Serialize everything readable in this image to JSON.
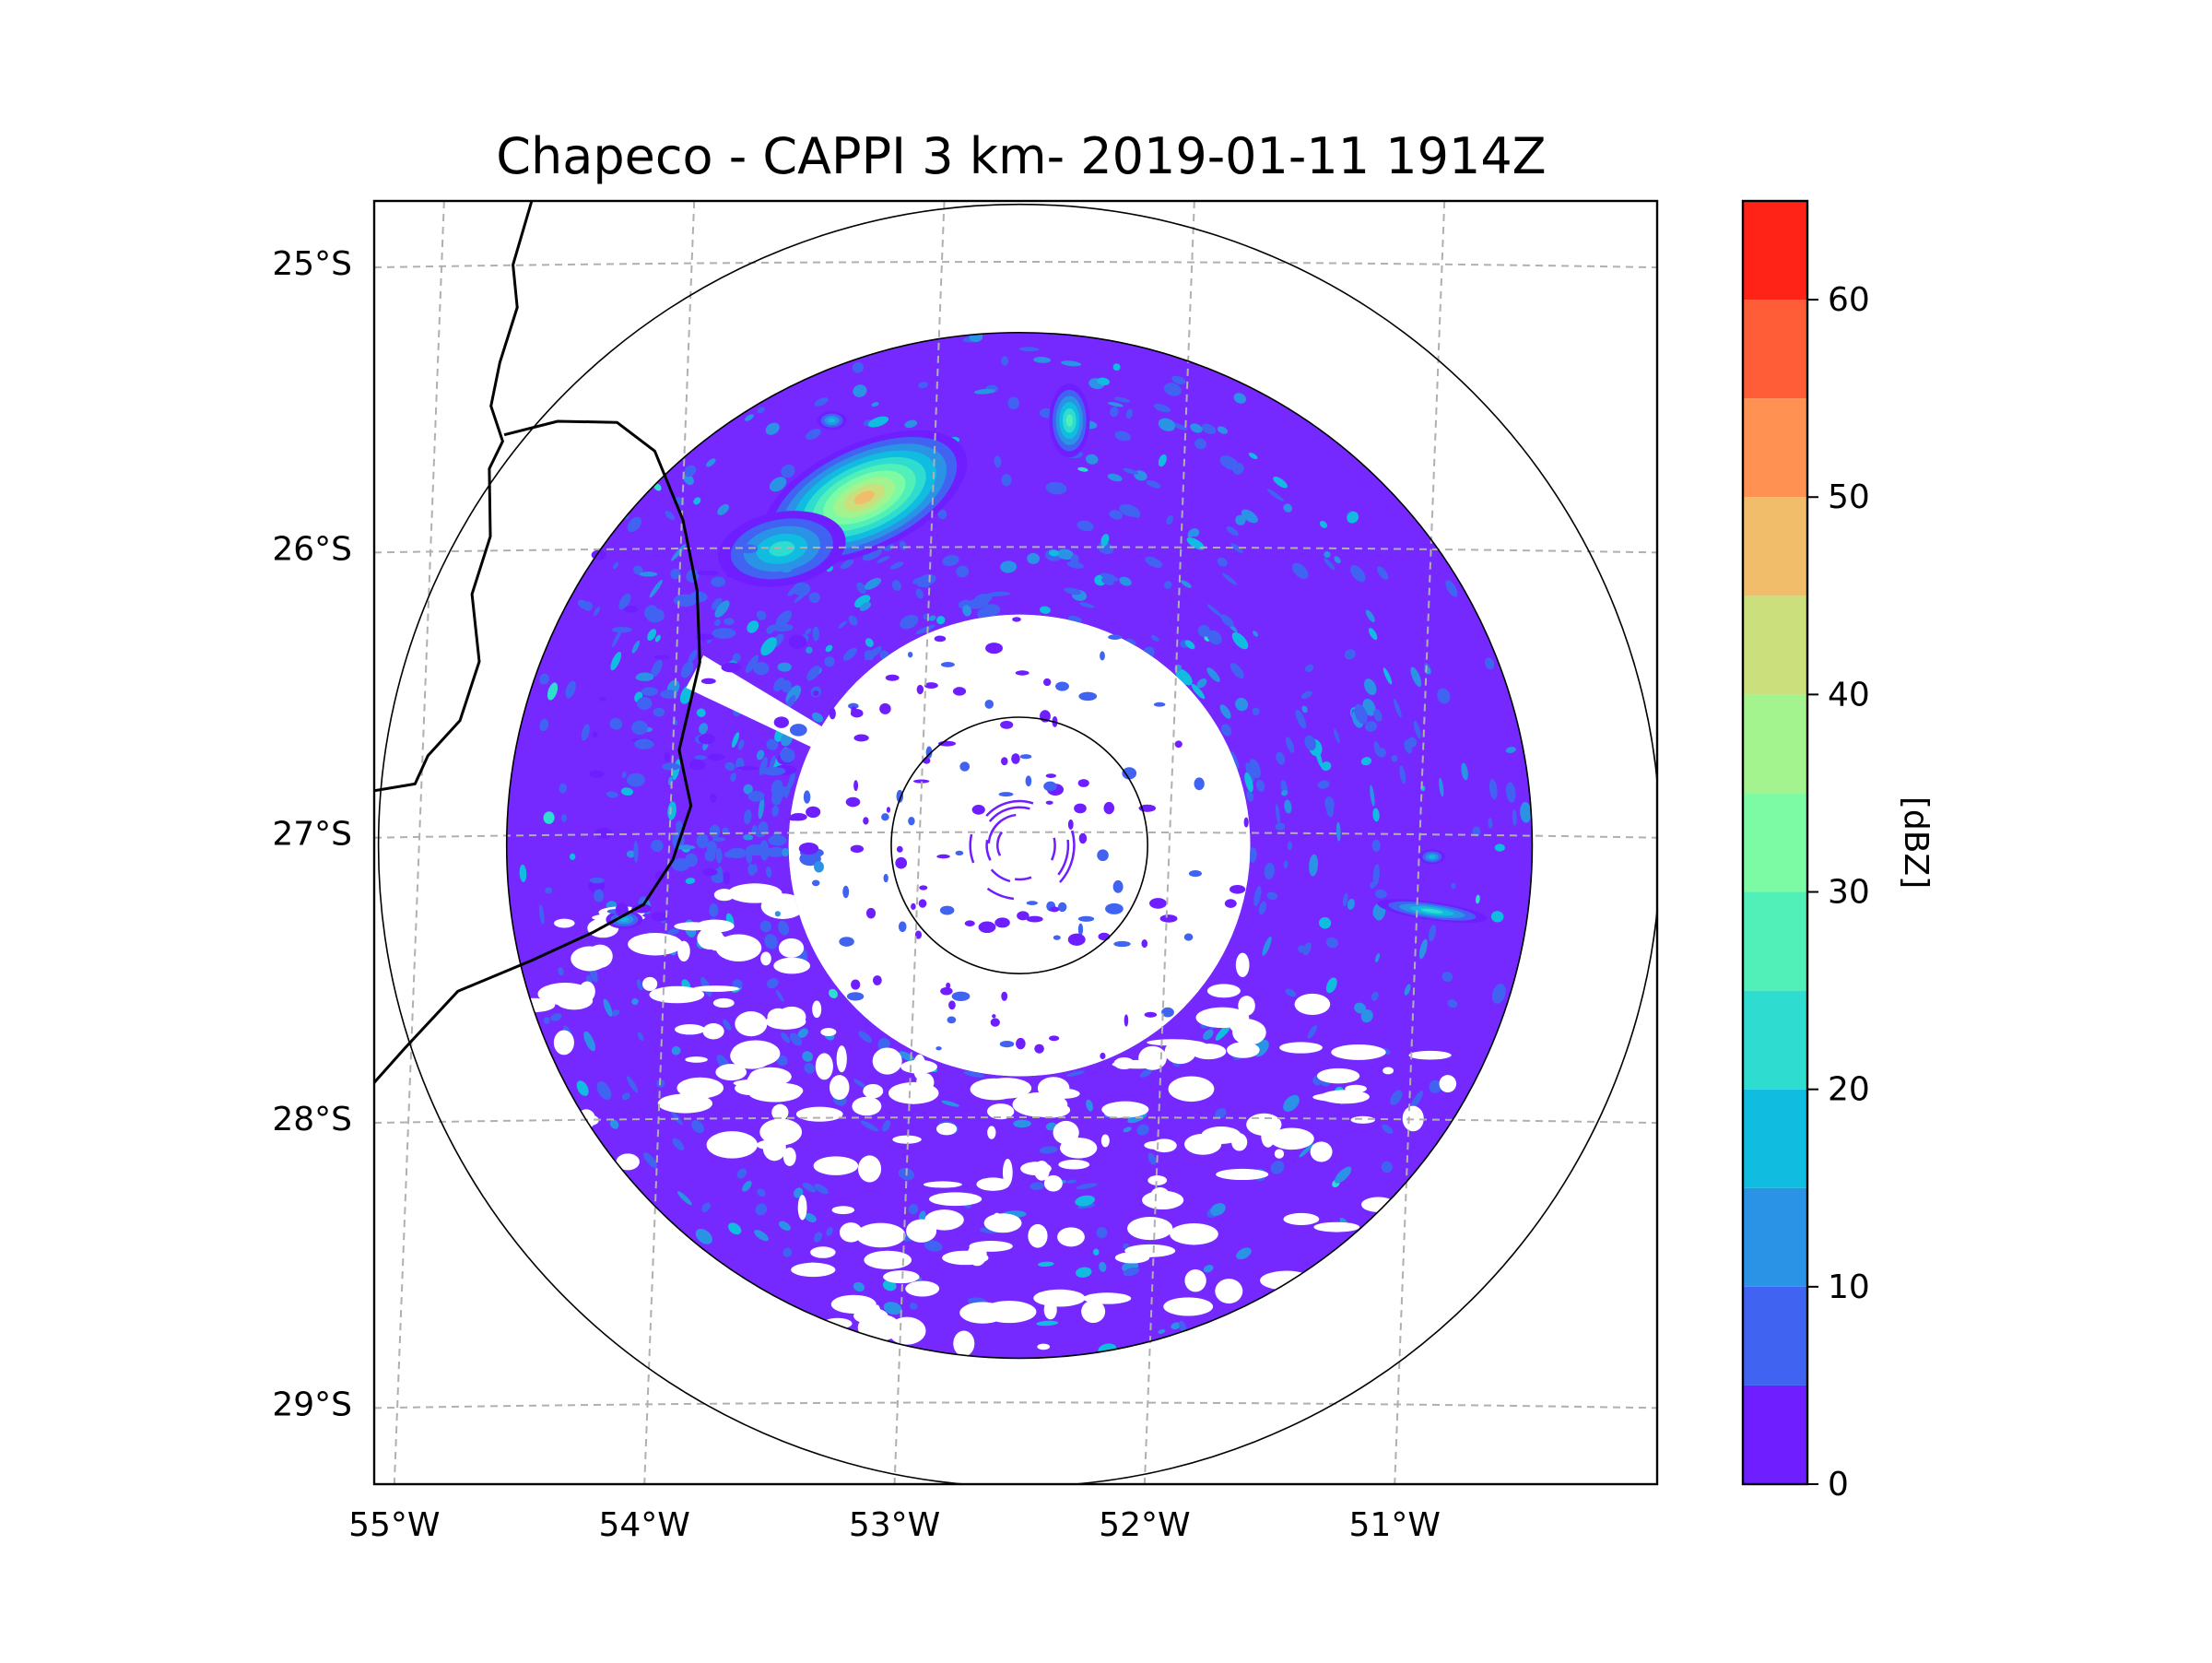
{
  "chart_data": {
    "type": "heatmap",
    "subtype": "radar-ppi-map",
    "title": "Chapeco - CAPPI 3 km- 2019-01-11 1914Z",
    "radar_site": "Chapeco",
    "product": "CAPPI 3 km",
    "datetime": "2019-01-11 1914Z",
    "radar_center": {
      "lon": -52.6,
      "lat": -27.04
    },
    "range_rings_km": [
      50,
      200,
      250
    ],
    "x_axis": {
      "label": "",
      "range": [
        -55.18,
        -50.05
      ],
      "ticks": [
        -55,
        -54,
        -53,
        -52,
        -51
      ],
      "tick_labels": [
        "55°W",
        "54°W",
        "53°W",
        "52°W",
        "51°W"
      ]
    },
    "y_axis": {
      "label": "",
      "range": [
        -29.28,
        -24.78
      ],
      "ticks": [
        -25,
        -26,
        -27,
        -28,
        -29
      ],
      "tick_labels": [
        "25°S",
        "26°S",
        "27°S",
        "28°S",
        "29°S"
      ]
    },
    "gridlines": true,
    "colorbar": {
      "label": "[dBZ]",
      "min": 0,
      "max": 65,
      "ticks": [
        0,
        10,
        20,
        30,
        40,
        50,
        60
      ],
      "tick_labels": [
        "0",
        "10",
        "20",
        "30",
        "40",
        "50",
        "60"
      ],
      "levels": [
        0,
        5,
        10,
        15,
        20,
        25,
        30,
        35,
        40,
        45,
        50,
        55,
        60,
        65
      ],
      "colors": [
        "#6e1eff",
        "#4163f2",
        "#2a93e6",
        "#10bde0",
        "#2fdcd0",
        "#52f0b9",
        "#7dfba4",
        "#a3f38e",
        "#cbdf7d",
        "#f1bd6b",
        "#ff9152",
        "#ff5c38",
        "#ff2217"
      ]
    },
    "echo_regions": [
      {
        "name": "main echo annulus",
        "inner_radius_km": 90,
        "outer_radius_km": 200,
        "dominant_dbz": "0-15"
      },
      {
        "name": "northwest convective cell",
        "lon": -53.2,
        "lat": -25.8,
        "max_dbz": 52
      },
      {
        "name": "north cell",
        "lon": -52.4,
        "lat": -25.55,
        "max_dbz": 30
      },
      {
        "name": "east band",
        "lon": -50.95,
        "lat": -27.25,
        "max_dbz": 28
      }
    ],
    "boundaries": [
      "Argentina–Brazil border",
      "Santa Catarina–Rio Grande do Sul border"
    ]
  }
}
